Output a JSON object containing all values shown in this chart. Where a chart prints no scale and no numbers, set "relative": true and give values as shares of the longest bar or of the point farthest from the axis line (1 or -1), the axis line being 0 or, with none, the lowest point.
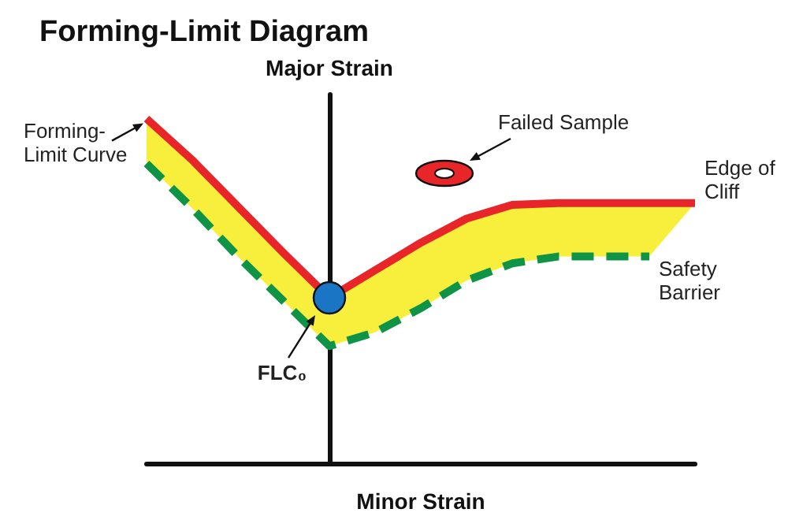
{
  "chart_data": {
    "type": "line",
    "title": "Forming-Limit Diagram",
    "xlabel": "Minor Strain",
    "ylabel": "Major Strain",
    "relative": true,
    "grid": false,
    "legend": false,
    "categories": [
      null,
      null,
      null,
      null,
      null,
      null,
      null,
      null,
      null,
      null,
      null,
      null,
      null
    ],
    "annotations": [
      "Forming-Limit Curve",
      "FLC₀",
      "Failed Sample"
    ],
    "series": [
      {
        "name": "Edge of Cliff",
        "color": "#e8262a",
        "line_style": "solid",
        "values": [
          1.0,
          0.88,
          0.745,
          0.61,
          0.48,
          0.56,
          0.64,
          0.71,
          0.75,
          0.755,
          0.755,
          0.755,
          0.755
        ],
        "lower": [
          0.87,
          0.74,
          0.6,
          0.47,
          0.34,
          0.38,
          0.45,
          0.53,
          0.58,
          0.6,
          0.6,
          0.6,
          0.755
        ],
        "upper": [
          1.0,
          0.88,
          0.745,
          0.61,
          0.48,
          0.56,
          0.64,
          0.71,
          0.75,
          0.755,
          0.755,
          0.755,
          0.755
        ]
      },
      {
        "name": "Safety Barrier",
        "color": "#0f9347",
        "line_style": "dashed",
        "values": [
          0.87,
          0.74,
          0.6,
          0.47,
          0.34,
          0.38,
          0.45,
          0.53,
          0.58,
          0.6,
          0.6,
          0.6,
          null
        ]
      }
    ]
  }
}
